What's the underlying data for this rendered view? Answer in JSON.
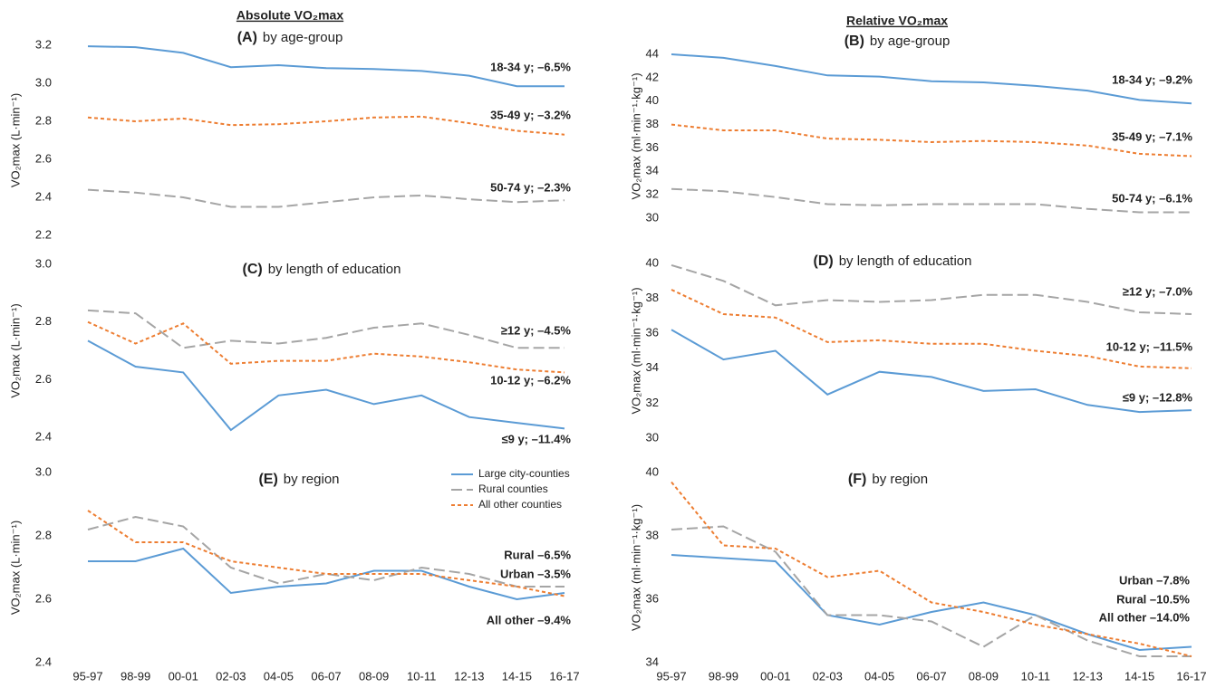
{
  "chart_data": [
    {
      "type": "line",
      "heading": "Absolute VO₂max",
      "panel": "(A)",
      "title": "by age-group",
      "y_label": "VO₂max (L·min⁻¹)",
      "ylim": [
        2.2,
        3.2
      ],
      "yticks": [
        2.2,
        2.4,
        2.6,
        2.8,
        {
          "value": 3,
          "label": "3.0"
        },
        3.2
      ],
      "series": [
        {
          "name": "18-34 y; –6.5%",
          "color": "#5b9bd5",
          "dash": "solid",
          "values": [
            3.195,
            3.19,
            3.16,
            3.085,
            3.095,
            3.08,
            3.075,
            3.065,
            3.04,
            2.985,
            2.985
          ]
        },
        {
          "name": "35-49 y; –3.2%",
          "color": "#ed7d31",
          "dash": "short",
          "values": [
            2.82,
            2.8,
            2.815,
            2.78,
            2.785,
            2.8,
            2.82,
            2.825,
            2.79,
            2.75,
            2.73
          ]
        },
        {
          "name": "50-74 y; –2.3%",
          "color": "#a5a5a5",
          "dash": "long",
          "values": [
            2.44,
            2.425,
            2.4,
            2.35,
            2.35,
            2.375,
            2.4,
            2.41,
            2.39,
            2.375,
            2.385
          ]
        }
      ]
    },
    {
      "type": "line",
      "heading": "Relative VO₂max",
      "panel": "(B)",
      "title": "by age-group",
      "y_label": "VO₂max (ml·min⁻¹·kg⁻¹)",
      "ylim": [
        30,
        44
      ],
      "yticks": [
        30,
        32,
        34,
        36,
        38,
        40,
        42,
        44
      ],
      "series": [
        {
          "name": "18-34 y; –9.2%",
          "color": "#5b9bd5",
          "dash": "solid",
          "values": [
            44.0,
            43.7,
            43.0,
            42.2,
            42.1,
            41.7,
            41.6,
            41.3,
            40.9,
            40.1,
            39.8
          ]
        },
        {
          "name": "35-49 y; –7.1%",
          "color": "#ed7d31",
          "dash": "short",
          "values": [
            38.0,
            37.5,
            37.5,
            36.8,
            36.7,
            36.5,
            36.6,
            36.5,
            36.2,
            35.5,
            35.3
          ]
        },
        {
          "name": "50-74 y; –6.1%",
          "color": "#a5a5a5",
          "dash": "long",
          "values": [
            32.5,
            32.3,
            31.8,
            31.2,
            31.1,
            31.2,
            31.2,
            31.2,
            30.8,
            30.5,
            30.5
          ]
        }
      ]
    },
    {
      "type": "line",
      "panel": "(C)",
      "title": "by length of education",
      "y_label": "VO₂max (L·min⁻¹)",
      "ylim": [
        2.4,
        3.0
      ],
      "yticks": [
        2.4,
        2.6,
        2.8,
        {
          "value": 3,
          "label": "3.0"
        }
      ],
      "series": [
        {
          "name": "≥12 y; –4.5%",
          "color": "#a5a5a5",
          "dash": "long",
          "values": [
            2.84,
            2.83,
            2.71,
            2.735,
            2.725,
            2.745,
            2.78,
            2.795,
            2.755,
            2.71,
            2.71
          ]
        },
        {
          "name": "10-12 y; –6.2%",
          "color": "#ed7d31",
          "dash": "short",
          "values": [
            2.8,
            2.725,
            2.795,
            2.655,
            2.665,
            2.665,
            2.69,
            2.68,
            2.66,
            2.635,
            2.625
          ]
        },
        {
          "name": "≤9 y; –11.4%",
          "color": "#5b9bd5",
          "dash": "solid",
          "values": [
            2.735,
            2.645,
            2.625,
            2.425,
            2.545,
            2.565,
            2.515,
            2.545,
            2.47,
            2.45,
            2.43
          ]
        }
      ]
    },
    {
      "type": "line",
      "panel": "(D)",
      "title": "by length of education",
      "y_label": "VO₂max (ml·min⁻¹·kg⁻¹)",
      "ylim": [
        30,
        40
      ],
      "yticks": [
        30,
        32,
        34,
        36,
        38,
        40
      ],
      "series": [
        {
          "name": "≥12 y; –7.0%",
          "color": "#a5a5a5",
          "dash": "long",
          "values": [
            39.9,
            39.0,
            37.6,
            37.9,
            37.8,
            37.9,
            38.2,
            38.2,
            37.8,
            37.2,
            37.1
          ]
        },
        {
          "name": "10-12 y; –11.5%",
          "color": "#ed7d31",
          "dash": "short",
          "values": [
            38.5,
            37.1,
            36.9,
            35.5,
            35.6,
            35.4,
            35.4,
            35.0,
            34.7,
            34.1,
            34.0
          ]
        },
        {
          "name": "≤9 y; –12.8%",
          "color": "#5b9bd5",
          "dash": "solid",
          "values": [
            36.2,
            34.5,
            35.0,
            32.5,
            33.8,
            33.5,
            32.7,
            32.8,
            31.9,
            31.5,
            31.6
          ]
        }
      ]
    },
    {
      "type": "line",
      "panel": "(E)",
      "title": "by region",
      "y_label": "VO₂max (L·min⁻¹)",
      "categories": [
        "95-97",
        "98-99",
        "00-01",
        "02-03",
        "04-05",
        "06-07",
        "08-09",
        "10-11",
        "12-13",
        "14-15",
        "16-17"
      ],
      "ylim": [
        2.4,
        3.0
      ],
      "yticks": [
        2.4,
        2.6,
        2.8,
        {
          "value": 3,
          "label": "3.0"
        }
      ],
      "legend": "top-right",
      "series": [
        {
          "name": "Large city-counties",
          "color": "#5b9bd5",
          "dash": "solid",
          "values": [
            2.72,
            2.72,
            2.76,
            2.62,
            2.64,
            2.65,
            2.69,
            2.69,
            2.64,
            2.6,
            2.62
          ]
        },
        {
          "name": "Rural counties",
          "color": "#a5a5a5",
          "dash": "long",
          "values": [
            2.82,
            2.86,
            2.83,
            2.7,
            2.65,
            2.68,
            2.66,
            2.7,
            2.68,
            2.64,
            2.64
          ]
        },
        {
          "name": "All other counties",
          "color": "#ed7d31",
          "dash": "short",
          "values": [
            2.88,
            2.78,
            2.78,
            2.72,
            2.7,
            2.68,
            2.68,
            2.68,
            2.66,
            2.64,
            2.61
          ]
        }
      ],
      "annotations": [
        "Rural –6.5%",
        "Urban –3.5%",
        "All other –9.4%"
      ]
    },
    {
      "type": "line",
      "panel": "(F)",
      "title": "by region",
      "y_label": "VO₂max (ml·min⁻¹·kg⁻¹)",
      "categories": [
        "95-97",
        "98-99",
        "00-01",
        "02-03",
        "04-05",
        "06-07",
        "08-09",
        "10-11",
        "12-13",
        "14-15",
        "16-17"
      ],
      "ylim": [
        34,
        40
      ],
      "yticks": [
        34,
        36,
        38,
        40
      ],
      "series": [
        {
          "color": "#5b9bd5",
          "dash": "solid",
          "values": [
            37.4,
            37.3,
            37.2,
            35.5,
            35.2,
            35.6,
            35.9,
            35.5,
            34.9,
            34.4,
            34.5
          ]
        },
        {
          "color": "#a5a5a5",
          "dash": "long",
          "values": [
            38.2,
            38.3,
            37.5,
            35.5,
            35.5,
            35.3,
            34.5,
            35.5,
            34.7,
            34.2,
            34.2
          ]
        },
        {
          "color": "#ed7d31",
          "dash": "short",
          "values": [
            39.7,
            37.7,
            37.6,
            36.7,
            36.9,
            35.9,
            35.6,
            35.2,
            34.9,
            34.6,
            34.2
          ]
        }
      ],
      "annotations": [
        "Urban –7.8%",
        "Rural –10.5%",
        "All other –14.0%"
      ]
    }
  ]
}
